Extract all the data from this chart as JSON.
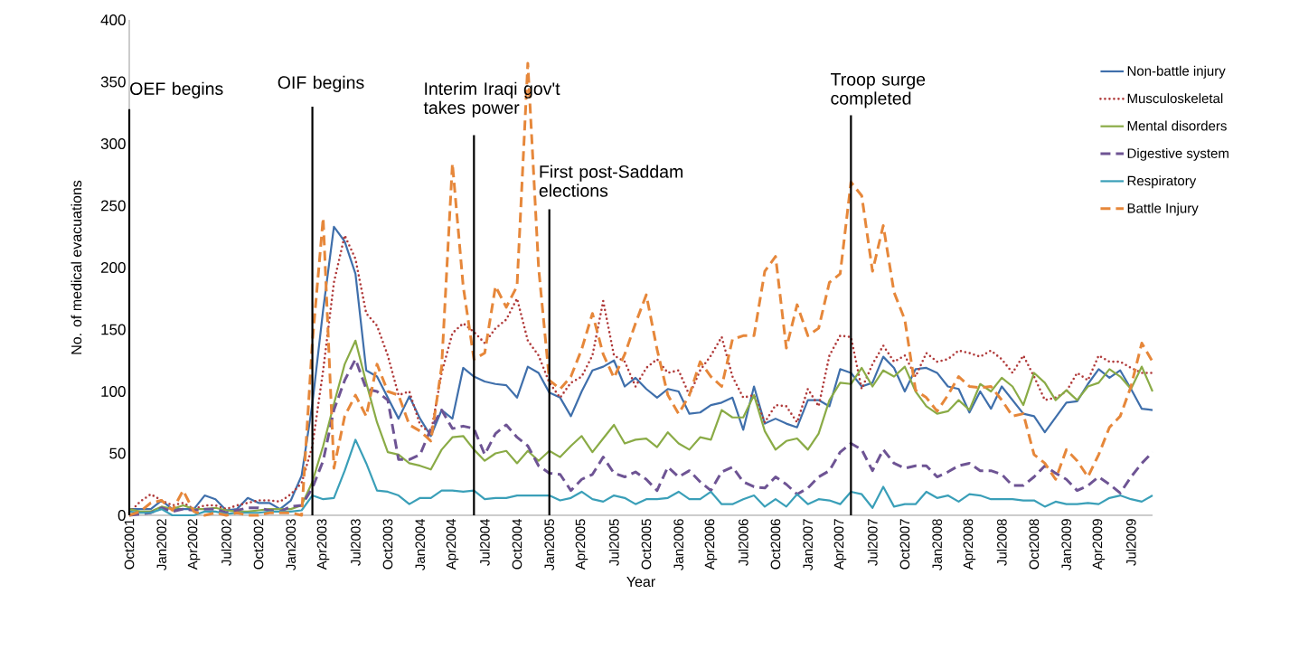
{
  "chart_data": {
    "type": "line",
    "xlabel": "Year",
    "ylabel": "No. of medical evacuations",
    "x": [
      "2001-10",
      "2001-11",
      "2001-12",
      "2002-01",
      "2002-02",
      "2002-03",
      "2002-04",
      "2002-05",
      "2002-06",
      "2002-07",
      "2002-08",
      "2002-09",
      "2002-10",
      "2002-11",
      "2002-12",
      "2003-01",
      "2003-02",
      "2003-03",
      "2003-04",
      "2003-05",
      "2003-06",
      "2003-07",
      "2003-08",
      "2003-09",
      "2003-10",
      "2003-11",
      "2003-12",
      "2004-01",
      "2004-02",
      "2004-03",
      "2004-04",
      "2004-05",
      "2004-06",
      "2004-07",
      "2004-08",
      "2004-09",
      "2004-10",
      "2004-11",
      "2004-12",
      "2005-01",
      "2005-02",
      "2005-03",
      "2005-04",
      "2005-05",
      "2005-06",
      "2005-07",
      "2005-08",
      "2005-09",
      "2005-10",
      "2005-11",
      "2005-12",
      "2006-01",
      "2006-02",
      "2006-03",
      "2006-04",
      "2006-05",
      "2006-06",
      "2006-07",
      "2006-08",
      "2006-09",
      "2006-10",
      "2006-11",
      "2006-12",
      "2007-01",
      "2007-02",
      "2007-03",
      "2007-04",
      "2007-05",
      "2007-06",
      "2007-07",
      "2007-08",
      "2007-09",
      "2007-10",
      "2007-11",
      "2007-12",
      "2008-01",
      "2008-02",
      "2008-03",
      "2008-04",
      "2008-05",
      "2008-06",
      "2008-07",
      "2008-08",
      "2008-09",
      "2008-10",
      "2008-11",
      "2008-12",
      "2009-01",
      "2009-02",
      "2009-03",
      "2009-04",
      "2009-05",
      "2009-06",
      "2009-07",
      "2009-08",
      "2009-09"
    ],
    "series": [
      {
        "name": "Non-battle injury",
        "color": "#3f6fab",
        "line_style": "solid",
        "values": [
          5,
          5,
          5,
          12,
          5,
          5,
          5,
          16,
          13,
          4,
          5,
          14,
          10,
          10,
          5,
          12,
          32,
          90,
          166,
          233,
          221,
          195,
          117,
          112,
          95,
          78,
          96,
          78,
          64,
          85,
          78,
          119,
          112,
          108,
          106,
          105,
          95,
          120,
          115,
          99,
          95,
          80,
          100,
          117,
          120,
          125,
          104,
          111,
          102,
          95,
          102,
          100,
          82,
          83,
          89,
          91,
          95,
          69,
          104,
          74,
          78,
          74,
          71,
          93,
          93,
          88,
          118,
          115,
          104,
          107,
          128,
          119,
          100,
          118,
          119,
          115,
          104,
          102,
          83,
          100,
          86,
          104,
          93,
          82,
          80,
          67,
          79,
          91,
          92,
          106,
          118,
          111,
          117,
          102,
          86,
          85
        ]
      },
      {
        "name": "Musculoskeletal",
        "color": "#b03a3a",
        "line_style": "dotted",
        "values": [
          2,
          11,
          17,
          12,
          8,
          10,
          5,
          8,
          8,
          5,
          8,
          10,
          12,
          12,
          11,
          17,
          26,
          56,
          117,
          188,
          226,
          207,
          163,
          153,
          129,
          97,
          100,
          73,
          66,
          115,
          147,
          155,
          148,
          139,
          151,
          158,
          175,
          141,
          129,
          107,
          95,
          107,
          112,
          129,
          173,
          129,
          124,
          104,
          119,
          126,
          115,
          117,
          97,
          117,
          129,
          144,
          112,
          95,
          97,
          75,
          89,
          88,
          75,
          102,
          88,
          129,
          145,
          144,
          102,
          122,
          137,
          124,
          129,
          112,
          131,
          124,
          126,
          133,
          131,
          128,
          133,
          126,
          115,
          129,
          112,
          93,
          95,
          100,
          115,
          109,
          129,
          124,
          124,
          119,
          115,
          115
        ]
      },
      {
        "name": "Mental disorders",
        "color": "#8aab46",
        "line_style": "solid",
        "values": [
          5,
          3,
          3,
          7,
          5,
          8,
          5,
          5,
          6,
          4,
          3,
          3,
          4,
          5,
          5,
          5,
          8,
          27,
          56,
          90,
          122,
          141,
          107,
          75,
          51,
          49,
          42,
          40,
          37,
          53,
          63,
          64,
          53,
          44,
          50,
          52,
          42,
          52,
          44,
          52,
          47,
          56,
          64,
          51,
          62,
          73,
          58,
          61,
          62,
          55,
          67,
          58,
          53,
          63,
          61,
          85,
          79,
          79,
          97,
          68,
          53,
          60,
          62,
          53,
          66,
          93,
          107,
          106,
          119,
          104,
          117,
          112,
          120,
          100,
          88,
          82,
          84,
          93,
          85,
          106,
          100,
          111,
          104,
          89,
          115,
          107,
          93,
          101,
          93,
          104,
          107,
          118,
          112,
          102,
          120,
          100
        ]
      },
      {
        "name": "Digestive system",
        "color": "#6e5494",
        "line_style": "dashed",
        "values": [
          0,
          1,
          2,
          6,
          3,
          5,
          4,
          5,
          5,
          2,
          4,
          6,
          6,
          4,
          3,
          7,
          8,
          22,
          44,
          85,
          109,
          126,
          102,
          100,
          93,
          45,
          45,
          49,
          70,
          85,
          70,
          72,
          70,
          49,
          66,
          73,
          63,
          56,
          40,
          34,
          33,
          20,
          29,
          33,
          47,
          34,
          31,
          35,
          29,
          20,
          39,
          31,
          36,
          27,
          20,
          35,
          39,
          27,
          23,
          22,
          31,
          25,
          17,
          22,
          31,
          36,
          51,
          58,
          53,
          36,
          53,
          42,
          38,
          40,
          40,
          31,
          35,
          40,
          42,
          36,
          36,
          33,
          24,
          24,
          31,
          40,
          34,
          29,
          20,
          24,
          31,
          25,
          18,
          31,
          42,
          51
        ]
      },
      {
        "name": "Respiratory",
        "color": "#3a9fb8",
        "line_style": "solid",
        "values": [
          3,
          2,
          2,
          5,
          0,
          0,
          0,
          3,
          3,
          1,
          2,
          2,
          2,
          3,
          3,
          3,
          4,
          16,
          13,
          14,
          36,
          61,
          42,
          20,
          19,
          16,
          9,
          14,
          14,
          20,
          20,
          19,
          20,
          13,
          14,
          14,
          16,
          16,
          16,
          16,
          12,
          14,
          19,
          13,
          11,
          16,
          14,
          9,
          13,
          13,
          14,
          19,
          13,
          13,
          19,
          9,
          9,
          13,
          16,
          7,
          13,
          7,
          17,
          9,
          13,
          12,
          9,
          19,
          17,
          6,
          23,
          7,
          9,
          9,
          19,
          14,
          16,
          11,
          17,
          16,
          13,
          13,
          13,
          12,
          12,
          7,
          11,
          9,
          9,
          10,
          9,
          14,
          16,
          13,
          11,
          16
        ]
      },
      {
        "name": "Battle Injury",
        "color": "#e6873a",
        "line_style": "dashed",
        "values": [
          0,
          3,
          10,
          12,
          4,
          20,
          3,
          0,
          2,
          0,
          2,
          0,
          0,
          2,
          2,
          2,
          0,
          140,
          240,
          38,
          80,
          97,
          80,
          122,
          100,
          97,
          73,
          68,
          60,
          120,
          284,
          185,
          126,
          131,
          185,
          168,
          185,
          365,
          200,
          109,
          102,
          112,
          134,
          163,
          130,
          111,
          130,
          155,
          178,
          134,
          97,
          82,
          97,
          124,
          112,
          104,
          142,
          145,
          145,
          197,
          209,
          135,
          170,
          145,
          151,
          188,
          195,
          269,
          258,
          197,
          234,
          180,
          158,
          101,
          95,
          84,
          97,
          112,
          104,
          103,
          104,
          93,
          80,
          82,
          49,
          42,
          29,
          53,
          44,
          31,
          49,
          71,
          80,
          104,
          139,
          124
        ]
      }
    ],
    "xlim": [
      "2001-10",
      "2009-09"
    ],
    "xticks": [
      {
        "value": "2001-10",
        "label": "Oct2001"
      },
      {
        "value": "2002-01",
        "label": "Jan2002"
      },
      {
        "value": "2002-04",
        "label": "Apr2002"
      },
      {
        "value": "2002-07",
        "label": "Jul2002"
      },
      {
        "value": "2002-10",
        "label": "Oct2002"
      },
      {
        "value": "2003-01",
        "label": "Jan2003"
      },
      {
        "value": "2003-04",
        "label": "Apr2003"
      },
      {
        "value": "2003-07",
        "label": "Jul2003"
      },
      {
        "value": "2003-10",
        "label": "Oct2003"
      },
      {
        "value": "2004-01",
        "label": "Jan2004"
      },
      {
        "value": "2004-04",
        "label": "Apr2004"
      },
      {
        "value": "2004-07",
        "label": "Jul2004"
      },
      {
        "value": "2004-10",
        "label": "Oct2004"
      },
      {
        "value": "2005-01",
        "label": "Jan2005"
      },
      {
        "value": "2005-04",
        "label": "Apr2005"
      },
      {
        "value": "2005-07",
        "label": "Jul2005"
      },
      {
        "value": "2005-10",
        "label": "Oct2005"
      },
      {
        "value": "2006-01",
        "label": "Jan2006"
      },
      {
        "value": "2006-04",
        "label": "Apr2006"
      },
      {
        "value": "2006-07",
        "label": "Jul2006"
      },
      {
        "value": "2006-10",
        "label": "Oct2006"
      },
      {
        "value": "2007-01",
        "label": "Jan2007"
      },
      {
        "value": "2007-04",
        "label": "Apr2007"
      },
      {
        "value": "2007-07",
        "label": "Jul2007"
      },
      {
        "value": "2007-10",
        "label": "Oct2007"
      },
      {
        "value": "2008-01",
        "label": "Jan2008"
      },
      {
        "value": "2008-04",
        "label": "Apr2008"
      },
      {
        "value": "2008-07",
        "label": "Jul2008"
      },
      {
        "value": "2008-10",
        "label": "Oct2008"
      },
      {
        "value": "2009-01",
        "label": "Jan2009"
      },
      {
        "value": "2009-04",
        "label": "Apr2009"
      },
      {
        "value": "2009-07",
        "label": "Jul2009"
      }
    ],
    "ylim": [
      0,
      400
    ],
    "yticks": [
      0,
      50,
      100,
      150,
      200,
      250,
      300,
      350,
      400
    ],
    "ref_lines": [
      {
        "axis": "x",
        "value": "2001-10",
        "label": "OEF begins",
        "color": "#000000"
      },
      {
        "axis": "x",
        "value": "2003-03",
        "label": "OIF begins",
        "color": "#000000"
      },
      {
        "axis": "x",
        "value": "2004-06",
        "label": "Interim Iraqi gov't takes power",
        "color": "#000000"
      },
      {
        "axis": "x",
        "value": "2005-01",
        "label": "First post-Saddam elections",
        "color": "#000000"
      },
      {
        "axis": "x",
        "value": "2007-05",
        "label": "Troop surge completed",
        "color": "#000000"
      }
    ],
    "grid": false,
    "legend": "top right"
  }
}
